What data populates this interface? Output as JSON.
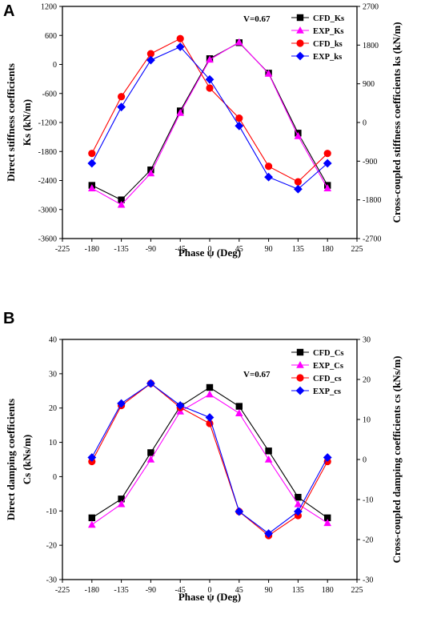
{
  "chart_data": [
    {
      "panel_label": "A",
      "type": "line",
      "annotation": "V=0.67",
      "xlabel": "Phase ψ (Deg)",
      "ylabel_left": [
        "Direct stiffness coefficients",
        "Ks (kN/m)"
      ],
      "ylabel_right": "Cross-coupled  stiffness coefficients ks (kN/m)",
      "xlim": [
        -225,
        225
      ],
      "xticks": [
        -225,
        -180,
        -135,
        -90,
        -45,
        0,
        45,
        90,
        135,
        180,
        225
      ],
      "ylim_left": [
        -3600,
        1200
      ],
      "yticks_left": [
        -3600,
        -3000,
        -2400,
        -1800,
        -1200,
        -600,
        0,
        600,
        1200
      ],
      "ylim_right": [
        -2700,
        2700
      ],
      "yticks_right": [
        -2700,
        -1800,
        -900,
        0,
        900,
        1800,
        2700
      ],
      "legend_position": "top-right",
      "x": [
        -180,
        -135,
        -90,
        -45,
        0,
        45,
        90,
        135,
        180
      ],
      "series": [
        {
          "name": "CFD_Ks",
          "axis": "left",
          "color": "#000000",
          "marker": "square",
          "values": [
            -2500,
            -2800,
            -2180,
            -960,
            120,
            450,
            -180,
            -1420,
            -2500
          ]
        },
        {
          "name": "EXP_Ks",
          "axis": "left",
          "color": "#ff00ff",
          "marker": "triangle",
          "values": [
            -2560,
            -2900,
            -2250,
            -1000,
            100,
            460,
            -190,
            -1480,
            -2560
          ]
        },
        {
          "name": "CFD_ks",
          "axis": "right",
          "color": "#ff0000",
          "marker": "circle",
          "values": [
            -720,
            600,
            1600,
            1950,
            800,
            100,
            -1020,
            -1380,
            -720
          ]
        },
        {
          "name": "EXP_ks",
          "axis": "right",
          "color": "#0000ff",
          "marker": "diamond",
          "values": [
            -950,
            360,
            1450,
            1760,
            1000,
            -80,
            -1270,
            -1550,
            -950
          ]
        }
      ]
    },
    {
      "panel_label": "B",
      "type": "line",
      "annotation": "V=0.67",
      "xlabel": "Phase ψ (Deg)",
      "ylabel_left": [
        "Direct damping coefficients",
        "Cs (kNs/m)"
      ],
      "ylabel_right": "Cross-coupled damping coefficients cs (kNs/m)",
      "xlim": [
        -225,
        225
      ],
      "xticks": [
        -225,
        -180,
        -135,
        -90,
        -45,
        0,
        45,
        90,
        135,
        180,
        225
      ],
      "ylim_left": [
        -30,
        40
      ],
      "yticks_left": [
        -30,
        -20,
        -10,
        0,
        10,
        20,
        30,
        40
      ],
      "ylim_right": [
        -30,
        30
      ],
      "yticks_right": [
        -30,
        -20,
        -10,
        0,
        10,
        20,
        30
      ],
      "legend_position": "top-right",
      "x": [
        -180,
        -135,
        -90,
        -45,
        0,
        45,
        90,
        135,
        180
      ],
      "series": [
        {
          "name": "CFD_Cs",
          "axis": "left",
          "color": "#000000",
          "marker": "square",
          "values": [
            -12,
            -6.5,
            7,
            20.5,
            26,
            20.5,
            7.5,
            -6,
            -12
          ]
        },
        {
          "name": "EXP_Cs",
          "axis": "left",
          "color": "#ff00ff",
          "marker": "triangle",
          "values": [
            -14,
            -8,
            5,
            19,
            24,
            18.5,
            5,
            -8,
            -13.5
          ]
        },
        {
          "name": "CFD_cs",
          "axis": "right",
          "color": "#ff0000",
          "marker": "circle",
          "values": [
            -0.5,
            13.5,
            19,
            13,
            9,
            -13,
            -19,
            -14,
            -0.5
          ]
        },
        {
          "name": "EXP_cs",
          "axis": "right",
          "color": "#0000ff",
          "marker": "diamond",
          "values": [
            0.5,
            14,
            19,
            13.5,
            10.5,
            -13,
            -18.5,
            -13,
            0.5
          ]
        }
      ]
    }
  ]
}
